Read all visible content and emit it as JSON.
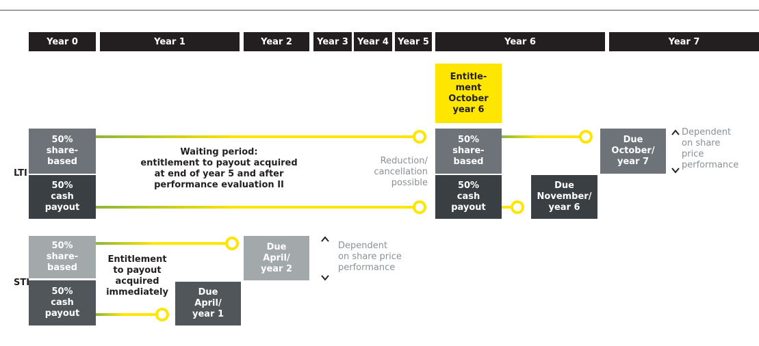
{
  "header": {
    "years": [
      "Year 0",
      "Year 1",
      "Year 2",
      "Year 3",
      "Year 4",
      "Year 5",
      "Year 6",
      "Year 7"
    ]
  },
  "entitlement": [
    "Entitle-",
    "ment",
    "October",
    "year 6"
  ],
  "lti": {
    "label": "LTI",
    "share_based": [
      "50%",
      "share-",
      "based"
    ],
    "cash": [
      "50%",
      "cash",
      "payout"
    ],
    "waiting_period": {
      "title": "Waiting period:",
      "lines": [
        "entitlement to payout acquired",
        "at end of year 5 and after",
        "performance evaluation II"
      ]
    },
    "reduction": [
      "Reduction/",
      "cancellation",
      "possible"
    ],
    "year6_share_based": [
      "50%",
      "share-",
      "based"
    ],
    "year6_cash": [
      "50%",
      "cash",
      "payout"
    ],
    "due_share": [
      "Due",
      "October/",
      "year 7"
    ],
    "due_cash": [
      "Due",
      "November/",
      "year 6"
    ],
    "dependent": [
      "Dependent",
      "on share",
      "price",
      "performance"
    ]
  },
  "sti": {
    "label": "STI",
    "share_based": [
      "50%",
      "share-",
      "based"
    ],
    "cash": [
      "50%",
      "cash",
      "payout"
    ],
    "entitlement": [
      "Entitlement",
      "to payout",
      "acquired",
      "immediately"
    ],
    "due_share": [
      "Due",
      "April/",
      "year 2"
    ],
    "due_cash": [
      "Due",
      "April/",
      "year 1"
    ],
    "dependent": [
      "Dependent",
      "on share price",
      "performance"
    ]
  }
}
